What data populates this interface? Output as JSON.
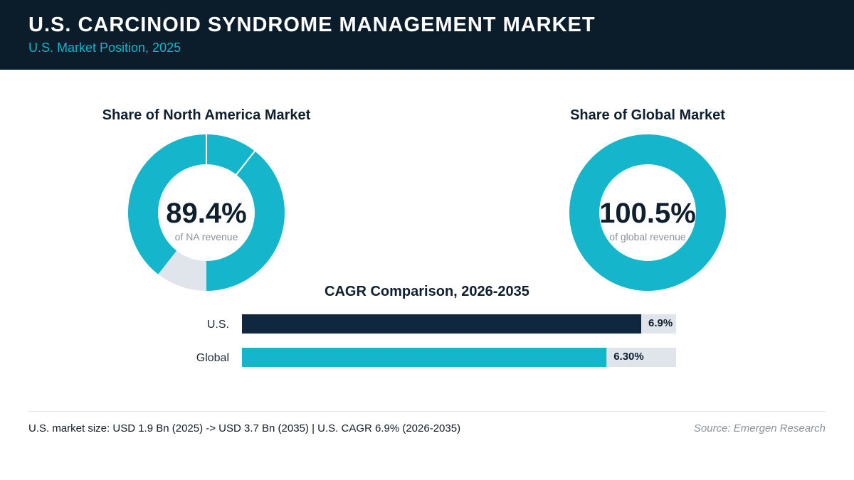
{
  "header": {
    "title": "U.S. CARCINOID SYNDROME MANAGEMENT MARKET",
    "subtitle": "U.S. Market Position, 2025"
  },
  "colors": {
    "header_bg": "#0b1c2b",
    "accent": "#15b6cb",
    "dark_bar": "#0f2840",
    "track": "#e0e5eb",
    "value_text": "#0f1f2e",
    "caption_text": "#8a939c"
  },
  "chart_data": [
    {
      "type": "pie",
      "title": "Share of North America Market",
      "value": 89.4,
      "max": 100,
      "value_label": "89.4%",
      "caption": "of NA revenue"
    },
    {
      "type": "pie",
      "title": "Share of Global Market",
      "value": 100.5,
      "max": 100,
      "value_label": "100.5%",
      "caption": "of global revenue"
    },
    {
      "type": "bar",
      "orientation": "horizontal",
      "title": "CAGR Comparison, 2026-2035",
      "categories": [
        "U.S.",
        "Global"
      ],
      "values": [
        6.9,
        6.3
      ],
      "value_labels": [
        "6.9%",
        "6.30%"
      ],
      "xlim": [
        0,
        7.5
      ],
      "grid": false
    }
  ],
  "footer": {
    "note": "U.S. market size: USD 1.9 Bn (2025) -> USD 3.7 Bn (2035)  |  U.S. CAGR 6.9% (2026-2035)",
    "source": "Source: Emergen Research"
  }
}
